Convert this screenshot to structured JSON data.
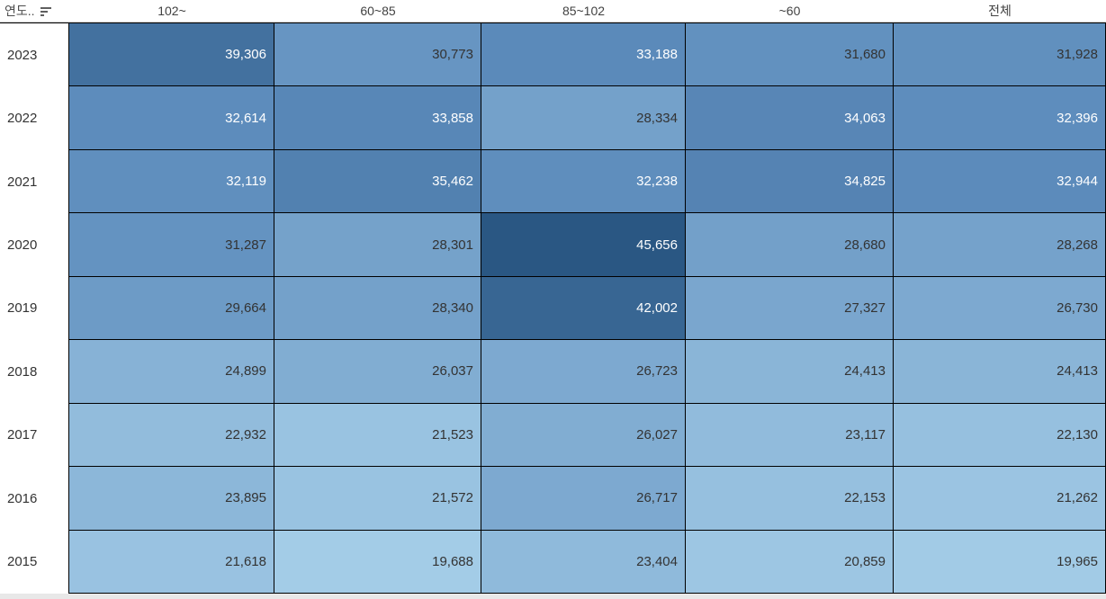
{
  "header": {
    "row_dimension_label": "연도..",
    "sort_icon": "sort-descending-icon"
  },
  "chart_data": {
    "type": "heatmap",
    "title": "",
    "columns": [
      "102~",
      "60~85",
      "85~102",
      "~60",
      "전체"
    ],
    "rows": [
      {
        "label": "2023",
        "values": [
          39306,
          30773,
          33188,
          31680,
          31928
        ]
      },
      {
        "label": "2022",
        "values": [
          32614,
          33858,
          28334,
          34063,
          32396
        ]
      },
      {
        "label": "2021",
        "values": [
          32119,
          35462,
          32238,
          34825,
          32944
        ]
      },
      {
        "label": "2020",
        "values": [
          31287,
          28301,
          45656,
          28680,
          28268
        ]
      },
      {
        "label": "2019",
        "values": [
          29664,
          28340,
          42002,
          27327,
          26730
        ]
      },
      {
        "label": "2018",
        "values": [
          24899,
          26037,
          26723,
          24413,
          24413
        ]
      },
      {
        "label": "2017",
        "values": [
          22932,
          21523,
          26027,
          23117,
          22130
        ]
      },
      {
        "label": "2016",
        "values": [
          23895,
          21572,
          26717,
          22153,
          21262
        ]
      },
      {
        "label": "2015",
        "values": [
          21618,
          19688,
          23404,
          20859,
          19965
        ]
      }
    ],
    "value_format": "thousands-comma",
    "color_scale": {
      "min_value": 19688,
      "max_value": 45656,
      "light": "#a3cce7",
      "mid": "#5d8cbc",
      "dark": "#2a5783",
      "white_text_threshold": 32000
    },
    "cell_text_dark": "#333333",
    "cell_text_light": "#ffffff",
    "gridline_color": "#000000",
    "legend_position": "none",
    "grid_on": true
  }
}
